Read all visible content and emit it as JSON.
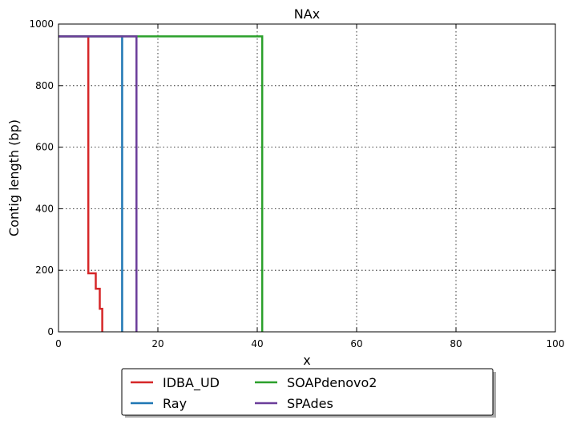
{
  "chart_data": {
    "type": "line",
    "title": "NAx",
    "xlabel": "x",
    "ylabel": "Contig length  (bp)",
    "xlim": [
      0,
      100
    ],
    "ylim": [
      0,
      1000
    ],
    "xticks": [
      0,
      20,
      40,
      60,
      80,
      100
    ],
    "yticks": [
      0,
      200,
      400,
      600,
      800,
      1000
    ],
    "grid": true,
    "legend": {
      "placement": "below-center",
      "columns": 3
    },
    "series": [
      {
        "name": "IDBA_UD",
        "color": "#d62728",
        "step": true,
        "points": [
          [
            0,
            960
          ],
          [
            6,
            960
          ],
          [
            6,
            190
          ],
          [
            7.5,
            190
          ],
          [
            7.5,
            140
          ],
          [
            8.3,
            140
          ],
          [
            8.3,
            75
          ],
          [
            8.8,
            75
          ],
          [
            8.8,
            0
          ]
        ]
      },
      {
        "name": "Ray",
        "color": "#1f77b4",
        "step": true,
        "points": [
          [
            0,
            960
          ],
          [
            12.8,
            960
          ],
          [
            12.8,
            0
          ]
        ]
      },
      {
        "name": "SOAPdenovo2",
        "color": "#2ca02c",
        "step": true,
        "points": [
          [
            0,
            960
          ],
          [
            41,
            960
          ],
          [
            41,
            0
          ]
        ]
      },
      {
        "name": "SPAdes",
        "color": "#6b3d9a",
        "step": true,
        "points": [
          [
            0,
            960
          ],
          [
            15.7,
            960
          ],
          [
            15.7,
            0
          ]
        ]
      }
    ]
  }
}
